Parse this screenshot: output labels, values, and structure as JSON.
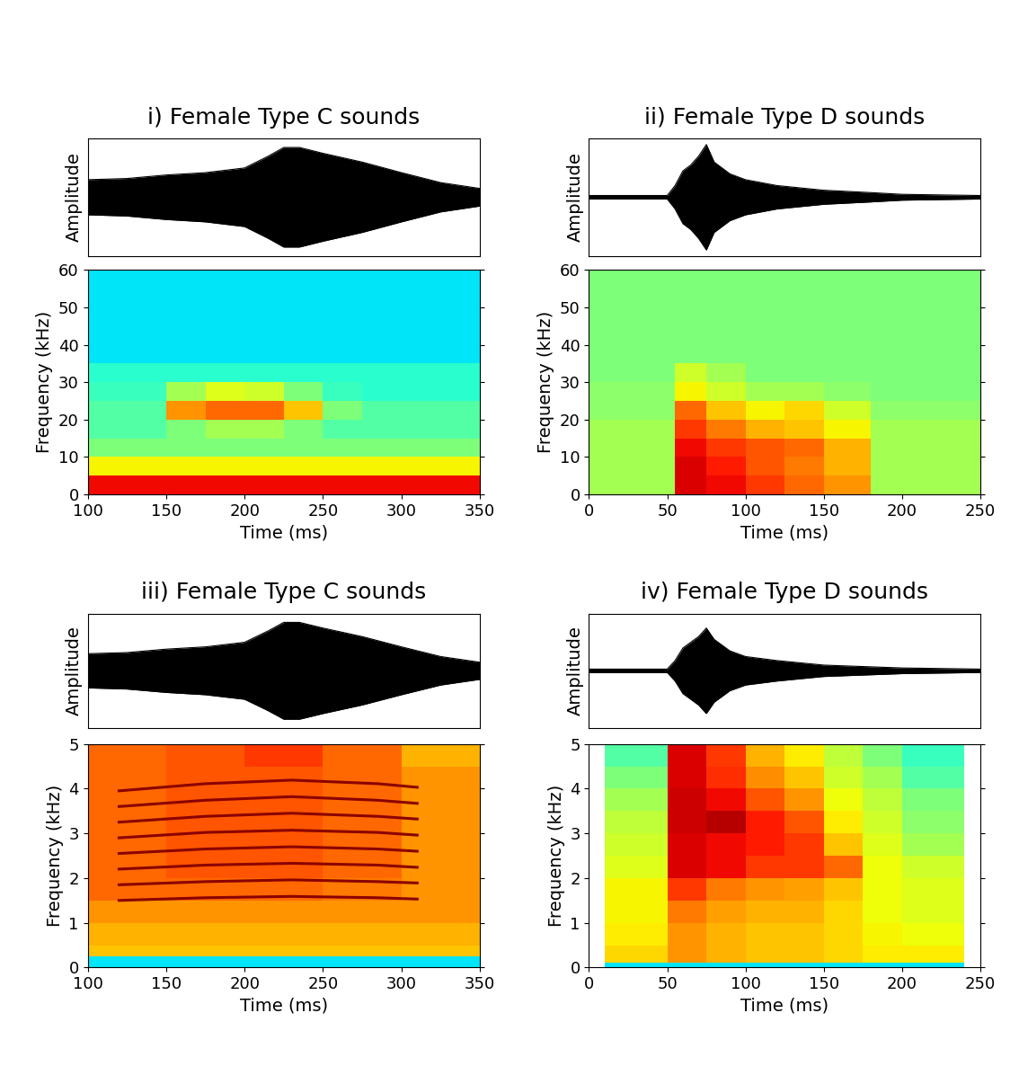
{
  "chart_data": [
    {
      "type": "area",
      "title": "i) Female Type C sounds",
      "y_label": "Amplitude",
      "color": "#000000",
      "x": [
        100,
        125,
        150,
        175,
        200,
        215,
        225,
        235,
        250,
        275,
        300,
        325,
        350
      ],
      "values": [
        0.3,
        0.32,
        0.38,
        0.42,
        0.5,
        0.7,
        0.85,
        0.85,
        0.75,
        0.6,
        0.42,
        0.25,
        0.15
      ],
      "xlim": [
        100,
        350
      ],
      "ylim": [
        -1,
        1
      ],
      "xticks": [],
      "yticks": [],
      "tick_labels": false
    },
    {
      "type": "heatmap",
      "x_label": "Time (ms)",
      "y_label": "Frequency (kHz)",
      "x_edges": [
        100,
        125,
        150,
        175,
        200,
        225,
        250,
        275,
        300,
        325,
        350
      ],
      "y_edges": [
        0,
        5,
        10,
        15,
        20,
        25,
        30,
        35,
        60
      ],
      "cells": [
        [
          0.9,
          0.9,
          0.9,
          0.9,
          0.9,
          0.9,
          0.9,
          0.9,
          0.9,
          0.9
        ],
        [
          0.65,
          0.65,
          0.65,
          0.65,
          0.65,
          0.65,
          0.65,
          0.65,
          0.65,
          0.65
        ],
        [
          0.5,
          0.5,
          0.5,
          0.5,
          0.5,
          0.5,
          0.5,
          0.5,
          0.5,
          0.5
        ],
        [
          0.45,
          0.45,
          0.5,
          0.55,
          0.55,
          0.5,
          0.45,
          0.45,
          0.45,
          0.45
        ],
        [
          0.45,
          0.45,
          0.75,
          0.8,
          0.8,
          0.7,
          0.5,
          0.45,
          0.45,
          0.45
        ],
        [
          0.42,
          0.42,
          0.55,
          0.62,
          0.6,
          0.5,
          0.42,
          0.4,
          0.4,
          0.4
        ],
        [
          0.4,
          0.4,
          0.4,
          0.4,
          0.4,
          0.4,
          0.4,
          0.4,
          0.4,
          0.4
        ],
        [
          0.35,
          0.35,
          0.35,
          0.35,
          0.35,
          0.35,
          0.35,
          0.35,
          0.35,
          0.35
        ]
      ],
      "clim": [
        0,
        1
      ],
      "xlim": [
        100,
        350
      ],
      "ylim": [
        0,
        60
      ],
      "xticks": [
        100,
        150,
        200,
        250,
        300,
        350
      ],
      "yticks": [
        0,
        10,
        20,
        30,
        40,
        50,
        60
      ]
    },
    {
      "type": "area",
      "title": "ii) Female Type D sounds",
      "y_label": "Amplitude",
      "color": "#000000",
      "x": [
        0,
        50,
        55,
        60,
        65,
        70,
        75,
        80,
        90,
        100,
        120,
        150,
        180,
        200,
        250
      ],
      "values": [
        0.03,
        0.03,
        0.2,
        0.45,
        0.55,
        0.7,
        0.9,
        0.6,
        0.4,
        0.3,
        0.2,
        0.12,
        0.08,
        0.05,
        0.03
      ],
      "xlim": [
        0,
        250
      ],
      "ylim": [
        -1,
        1
      ],
      "xticks": [],
      "yticks": [],
      "tick_labels": false
    },
    {
      "type": "heatmap",
      "x_label": "Time (ms)",
      "y_label": "Frequency (kHz)",
      "x_edges": [
        0,
        55,
        75,
        100,
        125,
        150,
        180,
        250
      ],
      "y_edges": [
        0,
        5,
        10,
        15,
        20,
        25,
        30,
        35,
        60
      ],
      "cells": [
        [
          0.55,
          0.92,
          0.9,
          0.85,
          0.8,
          0.75,
          0.55
        ],
        [
          0.55,
          0.92,
          0.88,
          0.82,
          0.78,
          0.72,
          0.55
        ],
        [
          0.55,
          0.9,
          0.85,
          0.82,
          0.8,
          0.72,
          0.55
        ],
        [
          0.55,
          0.85,
          0.78,
          0.72,
          0.7,
          0.65,
          0.55
        ],
        [
          0.52,
          0.8,
          0.7,
          0.65,
          0.68,
          0.6,
          0.52
        ],
        [
          0.52,
          0.65,
          0.6,
          0.55,
          0.55,
          0.52,
          0.5
        ],
        [
          0.5,
          0.6,
          0.55,
          0.5,
          0.5,
          0.5,
          0.5
        ],
        [
          0.5,
          0.5,
          0.5,
          0.5,
          0.5,
          0.5,
          0.5
        ]
      ],
      "clim": [
        0,
        1
      ],
      "xlim": [
        0,
        250
      ],
      "ylim": [
        0,
        60
      ],
      "xticks": [
        0,
        50,
        100,
        150,
        200,
        250
      ],
      "yticks": [
        0,
        10,
        20,
        30,
        40,
        50,
        60
      ]
    },
    {
      "type": "area",
      "title": "iii) Female Type C sounds",
      "y_label": "Amplitude",
      "color": "#000000",
      "x": [
        100,
        125,
        150,
        175,
        200,
        215,
        225,
        235,
        250,
        275,
        300,
        325,
        350
      ],
      "values": [
        0.3,
        0.32,
        0.38,
        0.42,
        0.5,
        0.7,
        0.85,
        0.85,
        0.75,
        0.6,
        0.42,
        0.25,
        0.15
      ],
      "xlim": [
        100,
        350
      ],
      "ylim": [
        -1,
        1
      ],
      "xticks": [],
      "yticks": [],
      "tick_labels": false
    },
    {
      "type": "heatmap",
      "x_label": "Time (ms)",
      "y_label": "Frequency (kHz)",
      "x_edges": [
        100,
        150,
        200,
        250,
        300,
        350
      ],
      "y_edges": [
        0,
        0.25,
        0.5,
        1,
        1.5,
        2,
        2.5,
        3,
        3.5,
        4,
        4.5,
        5
      ],
      "cells": [
        [
          0.35,
          0.35,
          0.35,
          0.35,
          0.35
        ],
        [
          0.7,
          0.7,
          0.7,
          0.7,
          0.7
        ],
        [
          0.72,
          0.72,
          0.72,
          0.72,
          0.72
        ],
        [
          0.75,
          0.75,
          0.75,
          0.75,
          0.75
        ],
        [
          0.8,
          0.8,
          0.8,
          0.78,
          0.75
        ],
        [
          0.8,
          0.82,
          0.82,
          0.8,
          0.75
        ],
        [
          0.8,
          0.82,
          0.82,
          0.8,
          0.75
        ],
        [
          0.8,
          0.82,
          0.82,
          0.8,
          0.75
        ],
        [
          0.8,
          0.82,
          0.82,
          0.8,
          0.75
        ],
        [
          0.8,
          0.82,
          0.82,
          0.8,
          0.75
        ],
        [
          0.8,
          0.82,
          0.85,
          0.8,
          0.72
        ]
      ],
      "clim": [
        0,
        1
      ],
      "lines": {
        "type": "line",
        "color": "#8b0000",
        "x": [
          120,
          175,
          230,
          285,
          310
        ],
        "series": [
          {
            "values": [
              1.5,
              1.56,
              1.59,
              1.56,
              1.53
            ]
          },
          {
            "values": [
              1.85,
              1.92,
              1.96,
              1.92,
              1.89
            ]
          },
          {
            "values": [
              2.2,
              2.29,
              2.33,
              2.29,
              2.24
            ]
          },
          {
            "values": [
              2.55,
              2.65,
              2.7,
              2.65,
              2.6
            ]
          },
          {
            "values": [
              2.9,
              3.02,
              3.07,
              3.02,
              2.96
            ]
          },
          {
            "values": [
              3.25,
              3.38,
              3.45,
              3.38,
              3.32
            ]
          },
          {
            "values": [
              3.6,
              3.74,
              3.82,
              3.74,
              3.67
            ]
          },
          {
            "values": [
              3.95,
              4.11,
              4.19,
              4.11,
              4.03
            ]
          }
        ]
      },
      "xlim": [
        100,
        350
      ],
      "ylim": [
        0,
        5
      ],
      "xticks": [
        100,
        150,
        200,
        250,
        300,
        350
      ],
      "yticks": [
        0,
        1,
        2,
        3,
        4,
        5
      ]
    },
    {
      "type": "area",
      "title": "iv) Female Type D sounds",
      "y_label": "Amplitude",
      "color": "#000000",
      "x": [
        0,
        50,
        55,
        60,
        65,
        70,
        75,
        80,
        90,
        100,
        120,
        150,
        180,
        200,
        250
      ],
      "values": [
        0.03,
        0.03,
        0.18,
        0.4,
        0.5,
        0.6,
        0.75,
        0.55,
        0.35,
        0.25,
        0.18,
        0.1,
        0.07,
        0.05,
        0.03
      ],
      "xlim": [
        0,
        250
      ],
      "ylim": [
        -1,
        1
      ],
      "xticks": [],
      "yticks": [],
      "tick_labels": false
    },
    {
      "type": "heatmap",
      "x_label": "Time (ms)",
      "y_label": "Frequency (kHz)",
      "x_edges": [
        10,
        50,
        75,
        100,
        125,
        150,
        175,
        200,
        240
      ],
      "y_edges": [
        0,
        0.1,
        0.5,
        1,
        1.5,
        2,
        2.5,
        3,
        3.5,
        4,
        4.5,
        5
      ],
      "cells": [
        [
          0.35,
          0.35,
          0.35,
          0.35,
          0.35,
          0.35,
          0.35,
          0.35
        ],
        [
          0.68,
          0.75,
          0.72,
          0.7,
          0.7,
          0.68,
          0.66,
          0.66
        ],
        [
          0.66,
          0.75,
          0.72,
          0.7,
          0.7,
          0.68,
          0.65,
          0.64
        ],
        [
          0.65,
          0.78,
          0.74,
          0.72,
          0.72,
          0.68,
          0.64,
          0.62
        ],
        [
          0.65,
          0.85,
          0.78,
          0.75,
          0.74,
          0.7,
          0.64,
          0.62
        ],
        [
          0.62,
          0.92,
          0.9,
          0.85,
          0.85,
          0.8,
          0.64,
          0.6
        ],
        [
          0.6,
          0.92,
          0.9,
          0.88,
          0.85,
          0.7,
          0.62,
          0.55
        ],
        [
          0.58,
          0.93,
          0.95,
          0.88,
          0.82,
          0.66,
          0.6,
          0.52
        ],
        [
          0.55,
          0.93,
          0.9,
          0.82,
          0.75,
          0.64,
          0.58,
          0.5
        ],
        [
          0.5,
          0.92,
          0.86,
          0.76,
          0.7,
          0.6,
          0.55,
          0.45
        ],
        [
          0.45,
          0.92,
          0.85,
          0.72,
          0.66,
          0.58,
          0.5,
          0.42
        ]
      ],
      "clim": [
        0,
        1
      ],
      "xlim": [
        0,
        250
      ],
      "ylim": [
        0,
        5
      ],
      "xticks": [
        0,
        50,
        100,
        150,
        200,
        250
      ],
      "yticks": [
        0,
        1,
        2,
        3,
        4,
        5
      ]
    }
  ]
}
